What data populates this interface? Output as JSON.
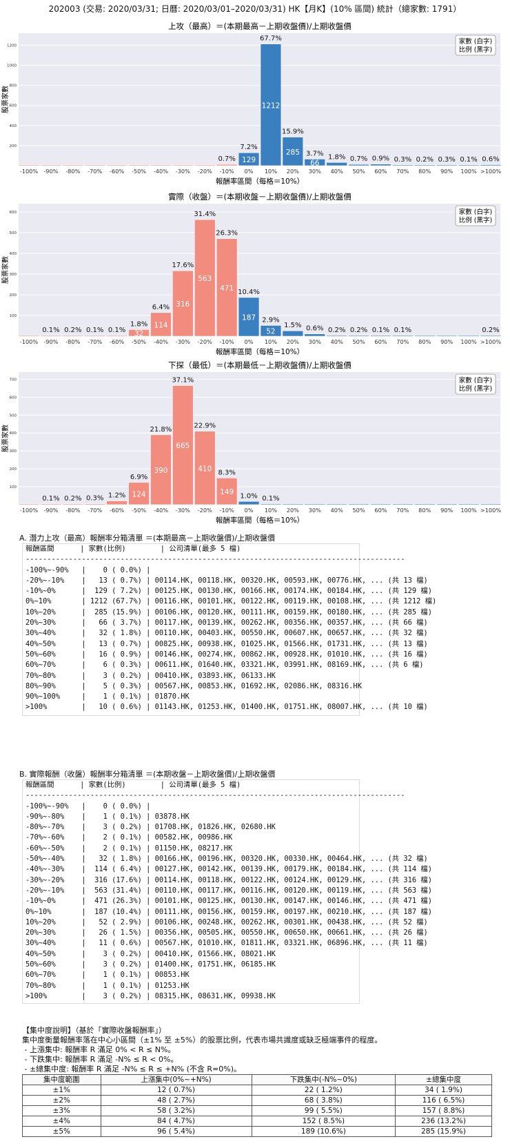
{
  "page_title": "202003 (交易: 2020/03/31; 日曆: 2020/03/01–2020/03/31) HK【月K】(10% 區間) 統計（總家數: 1791）",
  "legend_lines": [
    "家數 (白字)",
    "比例 (黑字)"
  ],
  "colors": {
    "positive": "#3a80c0",
    "negative": "#f28c7e",
    "plot_bg": "#eaeaf2"
  },
  "chart_data": [
    {
      "type": "bar",
      "title": "上攻（最高）＝(本期最高－上期收盤價)/上期收盤價",
      "xlabel": "報酬率區間（每格＝10%）",
      "ylabel": "股票家數",
      "categories": [
        "-100%",
        "-90%",
        "-80%",
        "-70%",
        "-60%",
        "-50%",
        "-40%",
        "-30%",
        "-20%",
        "-10%",
        "0%",
        "10%",
        "20%",
        "30%",
        "40%",
        "50%",
        "60%",
        "70%",
        "80%",
        "90%",
        "100%",
        ">100%"
      ],
      "counts": [
        0,
        0,
        0,
        0,
        0,
        0,
        0,
        0,
        0,
        13,
        129,
        1212,
        285,
        66,
        32,
        13,
        16,
        6,
        3,
        5,
        1,
        10
      ],
      "labels": [
        "",
        "",
        "",
        "",
        "",
        "",
        "",
        "",
        "",
        "0.7%",
        "7.2%",
        "67.7%",
        "15.9%",
        "3.7%",
        "1.8%",
        "0.7%",
        "0.9%",
        "0.3%",
        "0.2%",
        "0.3%",
        "0.1%",
        "0.6%"
      ],
      "yticks": [
        200,
        400,
        600,
        800,
        1000,
        1200
      ],
      "ylim": [
        0,
        1320
      ],
      "legend": "top-right"
    },
    {
      "type": "bar",
      "title": "實際（收盤）＝(本期收盤－上期收盤價)/上期收盤價",
      "xlabel": "報酬率區間（每格＝10%）",
      "ylabel": "股票家數",
      "categories": [
        "-100%",
        "-90%",
        "-80%",
        "-70%",
        "-60%",
        "-50%",
        "-40%",
        "-30%",
        "-20%",
        "-10%",
        "0%",
        "10%",
        "20%",
        "30%",
        "40%",
        "50%",
        "60%",
        "70%",
        "80%",
        "90%",
        "100%",
        ">100%"
      ],
      "counts": [
        0,
        1,
        3,
        2,
        2,
        32,
        114,
        316,
        563,
        471,
        187,
        52,
        26,
        11,
        3,
        3,
        1,
        1,
        0,
        0,
        0,
        3
      ],
      "labels": [
        "",
        "0.1%",
        "0.2%",
        "0.1%",
        "0.1%",
        "1.8%",
        "6.4%",
        "17.6%",
        "31.4%",
        "26.3%",
        "10.4%",
        "2.9%",
        "1.5%",
        "0.6%",
        "0.2%",
        "0.2%",
        "0.1%",
        "0.1%",
        "",
        "",
        "",
        "0.2%"
      ],
      "yticks": [
        100,
        200,
        300,
        400,
        500,
        600
      ],
      "ylim": [
        0,
        640
      ],
      "legend": "top-right"
    },
    {
      "type": "bar",
      "title": "下探（最低）＝(本期最低－上期收盤價)/上期收盤價",
      "xlabel": "報酬率區間（每格＝10%）",
      "ylabel": "股票家數",
      "categories": [
        "-100%",
        "-90%",
        "-80%",
        "-70%",
        "-60%",
        "-50%",
        "-40%",
        "-30%",
        "-20%",
        "-10%",
        "0%",
        "10%",
        "20%",
        "30%",
        "40%",
        "50%",
        "60%",
        "70%",
        "80%",
        "90%",
        "100%",
        ">100%"
      ],
      "counts": [
        0,
        1,
        3,
        5,
        21,
        124,
        390,
        665,
        410,
        149,
        18,
        1,
        0,
        0,
        0,
        0,
        0,
        0,
        0,
        0,
        0,
        0
      ],
      "labels": [
        "",
        "0.1%",
        "0.2%",
        "0.3%",
        "1.2%",
        "6.9%",
        "21.8%",
        "37.1%",
        "22.9%",
        "8.3%",
        "1.0%",
        "0.1%",
        "",
        "",
        "",
        "",
        "",
        "",
        "",
        "",
        "",
        ""
      ],
      "yticks": [
        100,
        200,
        300,
        400,
        500,
        600,
        700
      ],
      "ylim": [
        0,
        740
      ],
      "legend": "top-right"
    }
  ],
  "table_a": {
    "heading": "A. 潛力上攻（最高）報酬率分箱清單 ＝(本期最高－上期收盤價)/上期收盤價",
    "lines": [
      "報酬區間      | 家數(比例)        | 公司清單(最多 5 檔)",
      "----------------------------------------------------------------------------------------",
      "-100%~-90%   |    0 ( 0.0%) |",
      "-20%~-10%    |   13 ( 0.7%) | 00114.HK, 00118.HK, 00320.HK, 00593.HK, 00776.HK, ... (共 13 檔)",
      "-10%~0%      |  129 ( 7.2%) | 00125.HK, 00130.HK, 00166.HK, 00174.HK, 00184.HK, ... (共 129 檔)",
      "0%~10%       | 1212 (67.7%) | 00116.HK, 00101.HK, 00122.HK, 00119.HK, 00108.HK, ... (共 1212 檔)",
      "10%~20%      |  285 (15.9%) | 00106.HK, 00120.HK, 00111.HK, 00159.HK, 00180.HK, ... (共 285 檔)",
      "20%~30%      |   66 ( 3.7%) | 00117.HK, 00139.HK, 00262.HK, 00356.HK, 00357.HK, ... (共 66 檔)",
      "30%~40%      |   32 ( 1.8%) | 00110.HK, 00403.HK, 00550.HK, 00607.HK, 00657.HK, ... (共 32 檔)",
      "40%~50%      |   13 ( 0.7%) | 00825.HK, 00938.HK, 01025.HK, 01566.HK, 01731.HK, ... (共 13 檔)",
      "50%~60%      |   16 ( 0.9%) | 00146.HK, 00274.HK, 00862.HK, 00928.HK, 01010.HK, ... (共 16 檔)",
      "60%~70%      |    6 ( 0.3%) | 00611.HK, 01640.HK, 03321.HK, 03991.HK, 08169.HK, ... (共 6 檔)",
      "70%~80%      |    3 ( 0.2%) | 00410.HK, 03893.HK, 06133.HK",
      "80%~90%      |    5 ( 0.3%) | 00567.HK, 00853.HK, 01692.HK, 02086.HK, 08316.HK",
      "90%~100%     |    1 ( 0.1%) | 01870.HK",
      ">100%        |   10 ( 0.6%) | 01143.HK, 01253.HK, 01400.HK, 01751.HK, 08007.HK, ... (共 10 檔)"
    ]
  },
  "table_b": {
    "heading": "B. 實際報酬（收盤）報酬率分箱清單 ＝(本期收盤－上期收盤價)/上期收盤價",
    "lines": [
      "報酬區間      | 家數(比例)        | 公司清單(最多 5 檔)",
      "----------------------------------------------------------------------------------------",
      "-100%~-90%   |    0 ( 0.0%) |",
      "-90%~-80%    |    1 ( 0.1%) | 03878.HK",
      "-80%~-70%    |    3 ( 0.2%) | 01708.HK, 01826.HK, 02680.HK",
      "-70%~-60%    |    2 ( 0.1%) | 00582.HK, 00986.HK",
      "-60%~-50%    |    2 ( 0.1%) | 01150.HK, 08217.HK",
      "-50%~-40%    |   32 ( 1.8%) | 00166.HK, 00196.HK, 00320.HK, 00330.HK, 00464.HK, ... (共 32 檔)",
      "-40%~-30%    |  114 ( 6.4%) | 00127.HK, 00142.HK, 00139.HK, 00179.HK, 00184.HK, ... (共 114 檔)",
      "-30%~-20%    |  316 (17.6%) | 00114.HK, 00118.HK, 00122.HK, 00124.HK, 00129.HK, ... (共 316 檔)",
      "-20%~-10%    |  563 (31.4%) | 00110.HK, 00117.HK, 00116.HK, 00120.HK, 00119.HK, ... (共 563 檔)",
      "-10%~0%      |  471 (26.3%) | 00101.HK, 00125.HK, 00130.HK, 00147.HK, 00146.HK, ... (共 471 檔)",
      "0%~10%       |  187 (10.4%) | 00111.HK, 00156.HK, 00159.HK, 00197.HK, 00210.HK, ... (共 187 檔)",
      "10%~20%      |   52 ( 2.9%) | 00106.HK, 00248.HK, 00262.HK, 00301.HK, 00438.HK, ... (共 52 檔)",
      "20%~30%      |   26 ( 1.5%) | 00356.HK, 00505.HK, 00550.HK, 00650.HK, 00661.HK, ... (共 26 檔)",
      "30%~40%      |   11 ( 0.6%) | 00567.HK, 01010.HK, 01811.HK, 03321.HK, 06896.HK, ... (共 11 檔)",
      "40%~50%      |    3 ( 0.2%) | 00410.HK, 01566.HK, 08021.HK",
      "50%~60%      |    3 ( 0.2%) | 01400.HK, 01751.HK, 06185.HK",
      "60%~70%      |    1 ( 0.1%) | 00853.HK",
      "70%~80%      |    1 ( 0.1%) | 01253.HK",
      ">100%        |    3 ( 0.2%) | 08315.HK, 08631.HK, 09938.HK"
    ]
  },
  "concentration": {
    "lines": [
      "【集中度說明】（基於「實際收盤報酬率」）",
      "集中度衡量報酬率落在中心小區間（±1% 至 ±5%）的股票比例，代表市場共識度或缺乏極端事件的程度。",
      " - 上漲集中: 報酬率 R 滿足 0% < R ≤ N%。",
      " - 下跌集中: 報酬率 R 滿足 -N% ≤ R < 0%。",
      " - ±總集中度: 報酬率 R 滿足 -N% ≤ R ≤ +N% (不含 R=0%)。"
    ],
    "headers": [
      "集中度範圍",
      "上漲集中(0%~+N%)",
      "下跌集中(-N%~0%)",
      "±總集中度"
    ],
    "rows": [
      [
        "±1%",
        "12 ( 0.7%)",
        "22 ( 1.2%)",
        "34 ( 1.9%)"
      ],
      [
        "±2%",
        "48 ( 2.7%)",
        "68 ( 3.8%)",
        "116 ( 6.5%)"
      ],
      [
        "±3%",
        "58 ( 3.2%)",
        "99 ( 5.5%)",
        "157 ( 8.8%)"
      ],
      [
        "±4%",
        "84 ( 4.7%)",
        "152 ( 8.5%)",
        "236 (13.2%)"
      ],
      [
        "±5%",
        "96 ( 5.4%)",
        "189 (10.6%)",
        "285 (15.9%)"
      ]
    ]
  }
}
